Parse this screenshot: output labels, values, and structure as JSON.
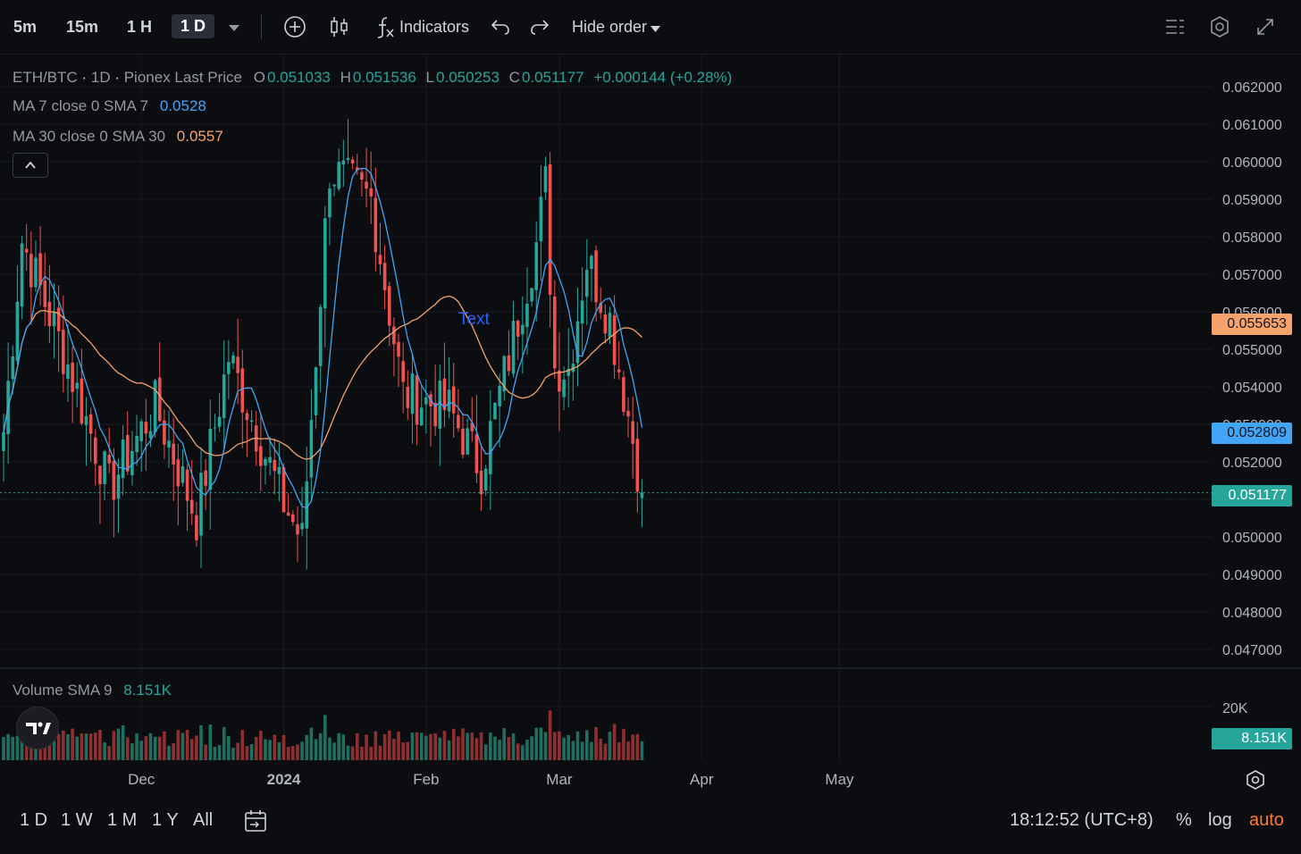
{
  "toolbar": {
    "intervals": [
      "5m",
      "15m",
      "1 H",
      "1 D"
    ],
    "active_interval": "1 D",
    "indicators_label": "Indicators",
    "hide_order_label": "Hide order"
  },
  "legend": {
    "symbol": "ETH/BTC",
    "interval": "1D",
    "source": "Pionex Last Price",
    "o_label": "O",
    "o_value": "0.051033",
    "h_label": "H",
    "h_value": "0.051536",
    "l_label": "L",
    "l_value": "0.050253",
    "c_label": "C",
    "c_value": "0.051177",
    "change": "+0.000144 (+0.28%)",
    "ma7_label": "MA 7 close 0 SMA 7",
    "ma7_value": "0.0528",
    "ma30_label": "MA 30 close 0 SMA 30",
    "ma30_value": "0.0557",
    "volume_label": "Volume SMA 9",
    "volume_value": "8.151K"
  },
  "annotation_text": "Text",
  "price_tags": {
    "ma30": "0.055653",
    "ma7": "0.052809",
    "last": "0.051177",
    "volume": "8.151K"
  },
  "y_axis_labels": [
    "0.062000",
    "0.061000",
    "0.060000",
    "0.059000",
    "0.058000",
    "0.057000",
    "0.056000",
    "0.055000",
    "0.054000",
    "0.053000",
    "0.052000",
    "0.051000",
    "0.050000",
    "0.049000",
    "0.048000",
    "0.047000"
  ],
  "volume_axis_label": "20K",
  "x_axis_labels": [
    "Dec",
    "2024",
    "Feb",
    "Mar",
    "Apr",
    "May"
  ],
  "bottom": {
    "ranges": [
      "1 D",
      "1 W",
      "1 M",
      "1 Y",
      "All"
    ],
    "time": "18:12:52 (UTC+8)",
    "percent": "%",
    "log": "log",
    "auto": "auto"
  },
  "colors": {
    "up": "#26a69a",
    "down": "#ef5350",
    "ma7": "#42a5f5",
    "ma30": "#f7a26b",
    "accent": "#ff7c2a",
    "annotation": "#2962ff"
  },
  "chart_data": {
    "type": "candlestick",
    "symbol": "ETH/BTC",
    "y_range": [
      0.0465,
      0.0625
    ],
    "visible_dates": [
      "2023-11-01",
      "2024-05-15"
    ],
    "series_last": {
      "open": 0.051033,
      "high": 0.051536,
      "low": 0.050253,
      "close": 0.051177
    },
    "ma7_last": 0.052809,
    "ma30_last": 0.055653,
    "volume_sma9_last": 8151,
    "volume_axis": [
      "20K"
    ],
    "checkpoints": [
      {
        "date": "2023-11-01",
        "close": 0.0528
      },
      {
        "date": "2023-11-05",
        "close": 0.0579
      },
      {
        "date": "2023-11-15",
        "close": 0.0546
      },
      {
        "date": "2023-11-24",
        "close": 0.0513
      },
      {
        "date": "2023-12-04",
        "close": 0.0535
      },
      {
        "date": "2023-12-13",
        "close": 0.0505
      },
      {
        "date": "2023-12-20",
        "close": 0.0548
      },
      {
        "date": "2024-01-01",
        "close": 0.0509
      },
      {
        "date": "2024-01-05",
        "close": 0.0499
      },
      {
        "date": "2024-01-11",
        "close": 0.0598
      },
      {
        "date": "2024-01-20",
        "close": 0.059
      },
      {
        "date": "2024-01-27",
        "close": 0.0538
      },
      {
        "date": "2024-02-06",
        "close": 0.0534
      },
      {
        "date": "2024-02-13",
        "close": 0.0518
      },
      {
        "date": "2024-02-20",
        "close": 0.0553
      },
      {
        "date": "2024-02-25",
        "close": 0.0578
      },
      {
        "date": "2024-02-27",
        "close": 0.0594
      },
      {
        "date": "2024-02-29",
        "close": 0.0545
      },
      {
        "date": "2024-03-03",
        "close": 0.0545
      },
      {
        "date": "2024-03-07",
        "close": 0.0574
      },
      {
        "date": "2024-03-12",
        "close": 0.0558
      },
      {
        "date": "2024-03-17",
        "close": 0.0526
      },
      {
        "date": "2024-03-19",
        "close": 0.051177
      }
    ]
  }
}
